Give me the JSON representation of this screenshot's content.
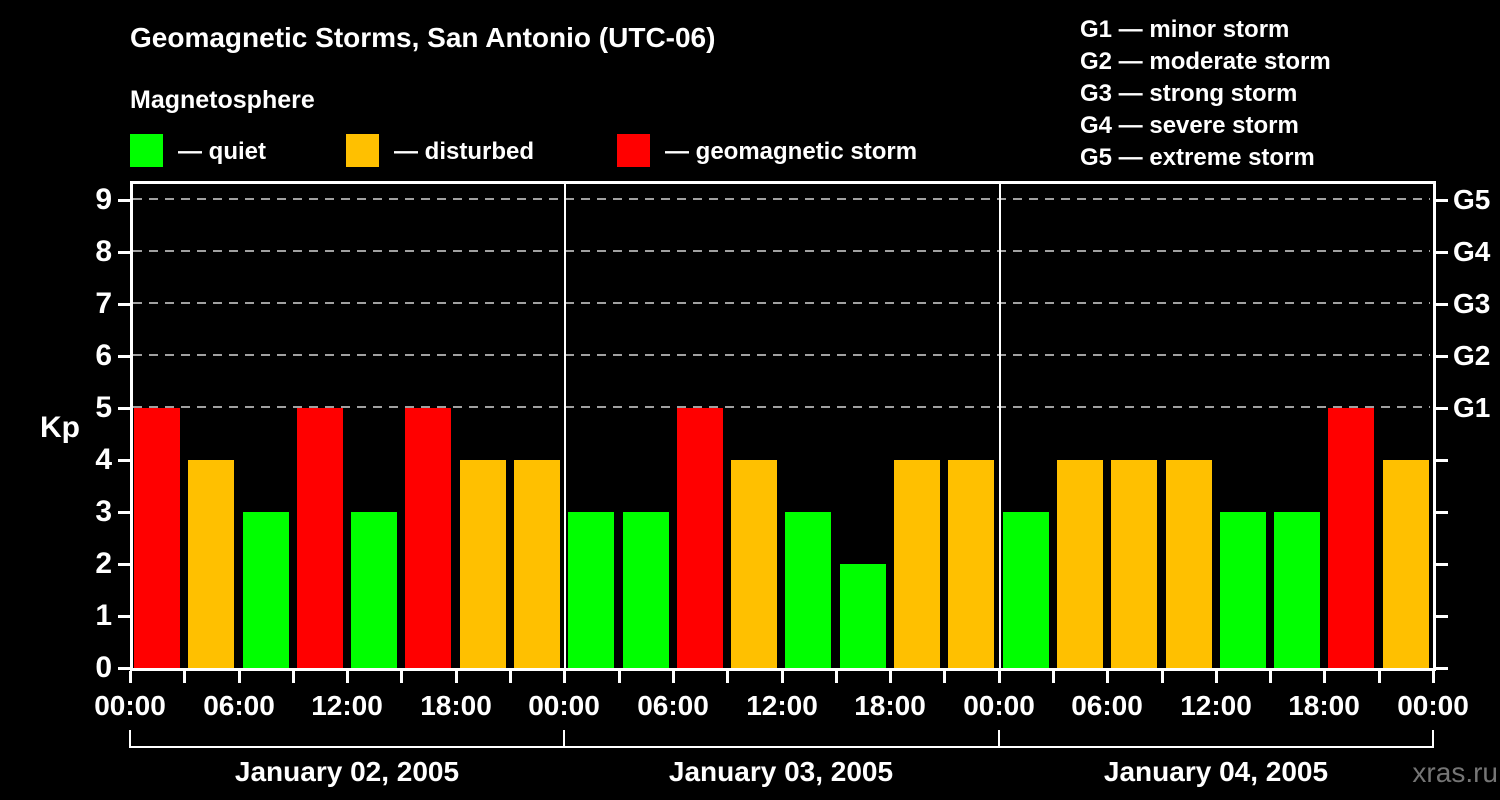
{
  "header": {
    "title": "Geomagnetic Storms, San Antonio (UTC-06)",
    "subtitle": "Magnetosphere"
  },
  "legend": {
    "items": [
      {
        "key": "quiet",
        "label": "— quiet",
        "color": "#00ff00"
      },
      {
        "key": "disturbed",
        "label": "— disturbed",
        "color": "#ffc000"
      },
      {
        "key": "storm",
        "label": "— geomagnetic storm",
        "color": "#ff0000"
      }
    ]
  },
  "g_legend": {
    "items": [
      "G1 — minor storm",
      "G2 — moderate storm",
      "G3 — strong storm",
      "G4 — severe storm",
      "G5 — extreme storm"
    ]
  },
  "chart_data": {
    "type": "bar",
    "title": "Geomagnetic Storms, San Antonio (UTC-06)",
    "ylabel": "Kp",
    "ylim": [
      0,
      9.4
    ],
    "yticks": [
      0,
      1,
      2,
      3,
      4,
      5,
      6,
      7,
      8,
      9
    ],
    "gridlines_dashed_at": [
      5,
      6,
      7,
      8,
      9
    ],
    "right_axis": {
      "labels": [
        "G1",
        "G2",
        "G3",
        "G4",
        "G5"
      ],
      "at": [
        5,
        6,
        7,
        8,
        9
      ]
    },
    "x_time_labels": [
      "00:00",
      "06:00",
      "12:00",
      "18:00"
    ],
    "interval_hours": 3,
    "days": [
      {
        "date": "January 02, 2005",
        "values": [
          5,
          4,
          3,
          5,
          3,
          5,
          4,
          4
        ]
      },
      {
        "date": "January 03, 2005",
        "values": [
          3,
          3,
          5,
          4,
          3,
          2,
          4,
          4
        ]
      },
      {
        "date": "January 04, 2005",
        "values": [
          3,
          4,
          4,
          4,
          3,
          3,
          5,
          4
        ]
      }
    ],
    "color_rule": {
      "quiet_max": 3,
      "disturbed_max": 4
    },
    "colors": {
      "quiet": "#00ff00",
      "disturbed": "#ffc000",
      "storm": "#ff0000",
      "background": "#000000",
      "axis": "#ffffff",
      "gridline": "#a0a0a0"
    }
  },
  "watermark": "xras.ru"
}
